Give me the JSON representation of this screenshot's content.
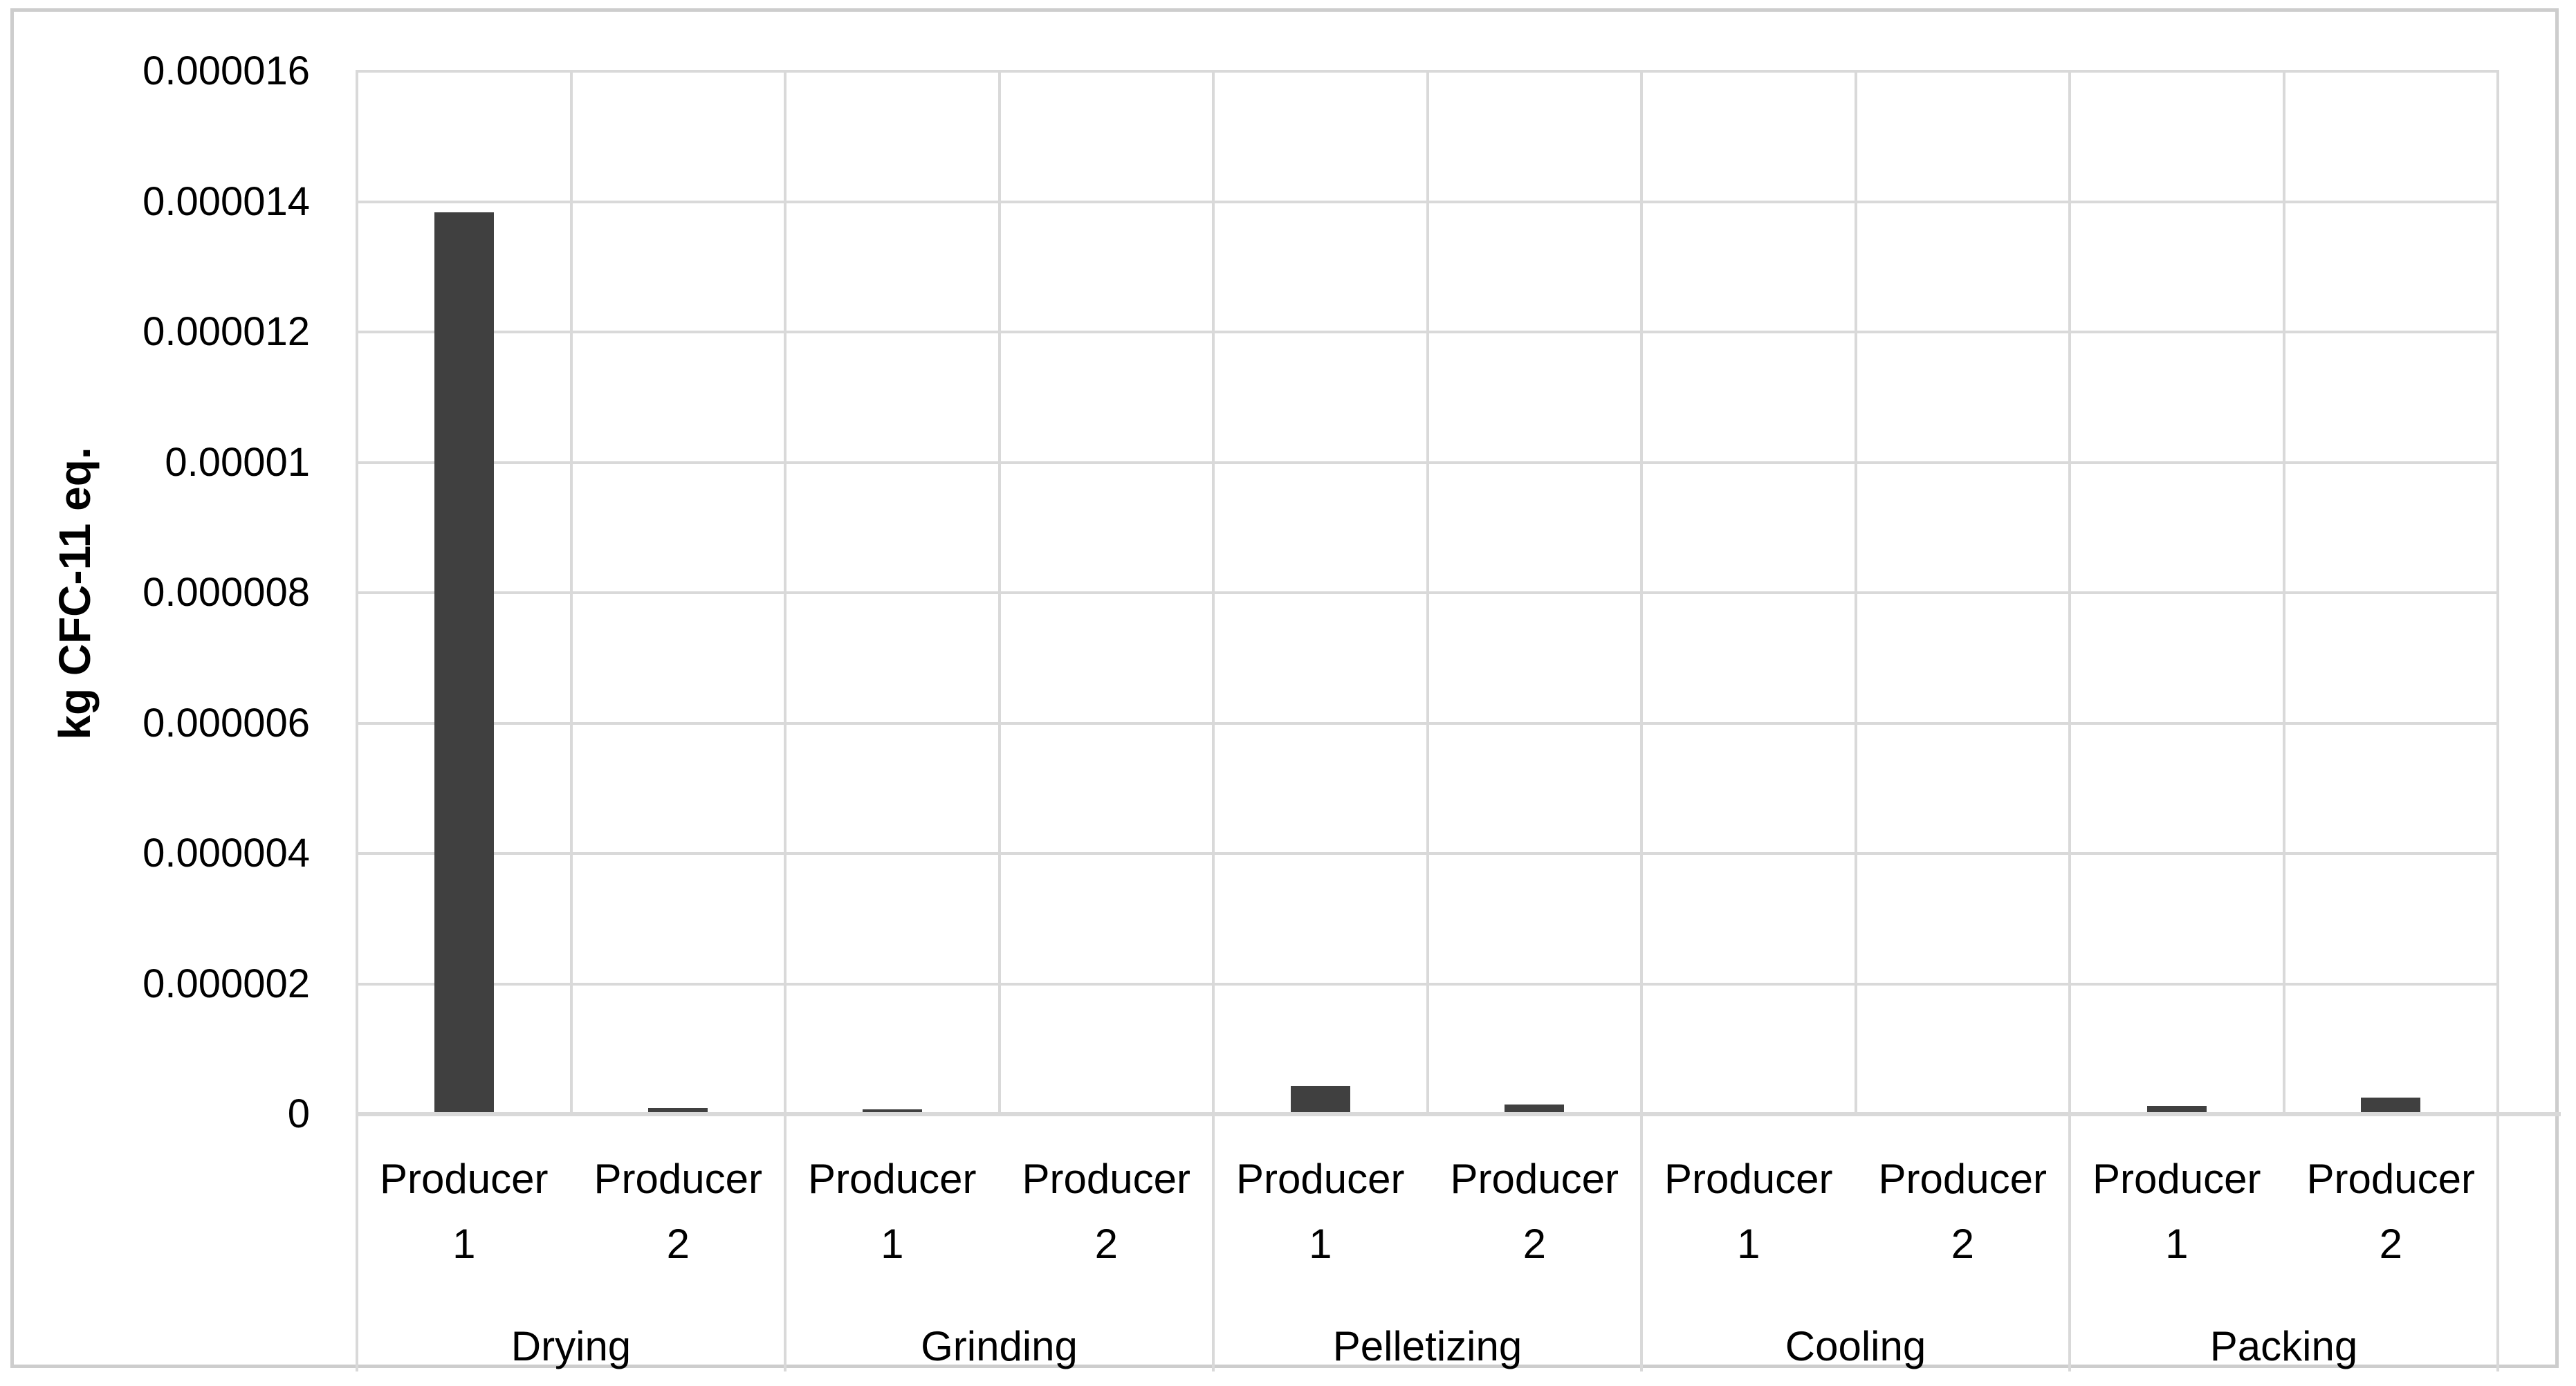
{
  "figure": {
    "background": "#ffffff",
    "border_color": "#cdcdcd"
  },
  "chart_data": {
    "type": "bar",
    "title": "",
    "xlabel": "",
    "ylabel": "kg CFC-11 eq.",
    "ylim": [
      0,
      1.6e-05
    ],
    "ytick_step": 2e-06,
    "ytick_labels": [
      "0",
      "0.000002",
      "0.000004",
      "0.000006",
      "0.000008",
      "0.00001",
      "0.000012",
      "0.000014",
      "0.000016"
    ],
    "grid": "both",
    "legend": "none",
    "bar_color": "#404040",
    "gridline_color": "#d9d9d9",
    "text_color": "#000000",
    "groups": [
      {
        "label": "Drying",
        "bars": [
          {
            "category": "Producer 1",
            "value": 1.38e-05
          },
          {
            "category": "Producer 2",
            "value": 6e-08
          }
        ]
      },
      {
        "label": "Grinding",
        "bars": [
          {
            "category": "Producer 1",
            "value": 4e-08
          },
          {
            "category": "Producer 2",
            "value": 0
          }
        ]
      },
      {
        "label": "Pelletizing",
        "bars": [
          {
            "category": "Producer 1",
            "value": 4e-07
          },
          {
            "category": "Producer 2",
            "value": 1.2e-07
          }
        ]
      },
      {
        "label": "Cooling",
        "bars": [
          {
            "category": "Producer 1",
            "value": 0
          },
          {
            "category": "Producer 2",
            "value": 0
          }
        ]
      },
      {
        "label": "Packing",
        "bars": [
          {
            "category": "Producer 1",
            "value": 1e-07
          },
          {
            "category": "Producer 2",
            "value": 2.2e-07
          }
        ]
      }
    ]
  }
}
